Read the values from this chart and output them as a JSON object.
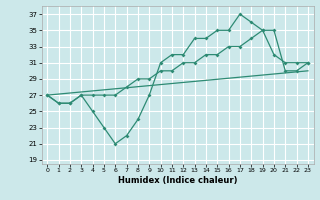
{
  "xlabel": "Humidex (Indice chaleur)",
  "xlim": [
    -0.5,
    23.5
  ],
  "ylim": [
    18.5,
    38
  ],
  "yticks": [
    19,
    21,
    23,
    25,
    27,
    29,
    31,
    33,
    35,
    37
  ],
  "xticks": [
    0,
    1,
    2,
    3,
    4,
    5,
    6,
    7,
    8,
    9,
    10,
    11,
    12,
    13,
    14,
    15,
    16,
    17,
    18,
    19,
    20,
    21,
    22,
    23
  ],
  "bg_color": "#cce8ea",
  "grid_color": "#ffffff",
  "line_color": "#2e8b74",
  "line1_x": [
    0,
    1,
    2,
    3,
    4,
    5,
    6,
    7,
    8,
    9,
    10,
    11,
    12,
    13,
    14,
    15,
    16,
    17,
    18,
    19,
    20,
    21,
    22,
    23
  ],
  "line1_y": [
    27,
    26,
    26,
    27,
    25,
    23,
    21,
    22,
    24,
    27,
    31,
    32,
    32,
    34,
    34,
    35,
    35,
    37,
    36,
    35,
    32,
    31,
    31,
    31
  ],
  "line2_x": [
    0,
    1,
    2,
    3,
    4,
    5,
    6,
    7,
    8,
    9,
    10,
    11,
    12,
    13,
    14,
    15,
    16,
    17,
    18,
    19,
    20,
    21,
    22,
    23
  ],
  "line2_y": [
    27,
    26,
    26,
    27,
    27,
    27,
    27,
    28,
    29,
    29,
    30,
    30,
    31,
    31,
    32,
    32,
    33,
    33,
    34,
    35,
    35,
    30,
    30,
    31
  ],
  "line3_x": [
    0,
    23
  ],
  "line3_y": [
    27,
    30
  ]
}
